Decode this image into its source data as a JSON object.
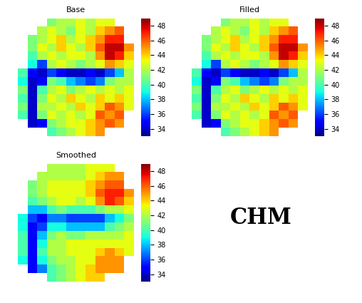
{
  "chart_data": [
    {
      "type": "heatmap",
      "title": "Base",
      "tick_labels": false,
      "cells": [
        [
          null,
          null,
          null,
          41,
          42,
          42,
          43,
          42,
          43,
          43,
          null,
          null
        ],
        [
          null,
          null,
          42,
          43,
          42,
          41,
          43,
          42,
          44,
          45,
          46,
          null
        ],
        [
          null,
          41,
          42,
          43,
          44,
          42,
          43,
          44,
          45,
          47,
          47,
          null
        ],
        [
          null,
          41,
          43,
          42,
          44,
          43,
          42,
          44,
          46,
          48,
          48,
          45
        ],
        [
          null,
          40,
          42,
          43,
          42,
          43,
          43,
          42,
          45,
          48,
          47,
          44
        ],
        [
          null,
          39,
          36,
          42,
          43,
          42,
          41,
          42,
          43,
          45,
          44,
          43
        ],
        [
          40,
          35,
          34,
          36,
          35,
          34,
          34,
          35,
          34,
          36,
          38,
          42
        ],
        [
          39,
          34,
          35,
          41,
          40,
          38,
          37,
          36,
          37,
          41,
          42,
          42
        ],
        [
          41,
          34,
          40,
          42,
          43,
          41,
          42,
          43,
          42,
          43,
          42,
          43
        ],
        [
          40,
          34,
          41,
          43,
          42,
          44,
          43,
          42,
          44,
          43,
          44,
          43
        ],
        [
          41,
          34,
          42,
          42,
          43,
          42,
          44,
          43,
          44,
          46,
          45,
          43
        ],
        [
          40,
          34,
          41,
          43,
          42,
          43,
          42,
          43,
          46,
          45,
          46,
          null
        ],
        [
          null,
          34,
          35,
          41,
          42,
          43,
          43,
          44,
          45,
          46,
          45,
          null
        ],
        [
          null,
          null,
          null,
          40,
          41,
          42,
          43,
          44,
          45,
          null,
          null,
          null
        ]
      ],
      "colorbar_range": [
        33,
        49
      ],
      "colorbar_ticks": [
        34,
        36,
        38,
        40,
        42,
        44,
        46,
        48
      ]
    },
    {
      "type": "heatmap",
      "title": "Filled",
      "tick_labels": false,
      "cells": [
        [
          null,
          null,
          null,
          41,
          42,
          42,
          43,
          42,
          43,
          43,
          null,
          null
        ],
        [
          null,
          null,
          42,
          43,
          42,
          41,
          43,
          42,
          44,
          45,
          46,
          null
        ],
        [
          null,
          41,
          42,
          43,
          44,
          42,
          43,
          44,
          45,
          47,
          47,
          null
        ],
        [
          null,
          41,
          43,
          42,
          44,
          43,
          42,
          44,
          46,
          48,
          48,
          45
        ],
        [
          null,
          40,
          42,
          43,
          42,
          43,
          43,
          42,
          45,
          48,
          47,
          44
        ],
        [
          null,
          39,
          36,
          42,
          43,
          42,
          41,
          42,
          43,
          45,
          44,
          43
        ],
        [
          40,
          35,
          34,
          36,
          35,
          34,
          34,
          35,
          34,
          36,
          38,
          42
        ],
        [
          39,
          34,
          35,
          41,
          40,
          38,
          37,
          36,
          37,
          41,
          42,
          42
        ],
        [
          41,
          34,
          40,
          42,
          43,
          41,
          42,
          43,
          42,
          43,
          42,
          43
        ],
        [
          40,
          34,
          41,
          43,
          42,
          44,
          43,
          42,
          44,
          43,
          44,
          43
        ],
        [
          41,
          34,
          42,
          42,
          43,
          42,
          44,
          43,
          44,
          46,
          45,
          43
        ],
        [
          40,
          34,
          41,
          43,
          42,
          43,
          42,
          43,
          46,
          45,
          46,
          null
        ],
        [
          null,
          34,
          35,
          41,
          42,
          43,
          43,
          44,
          45,
          46,
          45,
          null
        ],
        [
          null,
          null,
          null,
          40,
          41,
          42,
          43,
          44,
          45,
          null,
          null,
          null
        ]
      ],
      "colorbar_range": [
        33,
        49
      ],
      "colorbar_ticks": [
        34,
        36,
        38,
        40,
        42,
        44,
        46,
        48
      ]
    },
    {
      "type": "heatmap",
      "title": "Smoothed",
      "tick_labels": false,
      "cells": [
        [
          null,
          null,
          null,
          42,
          42,
          42,
          42,
          43,
          43,
          43,
          null,
          null
        ],
        [
          null,
          null,
          42,
          42,
          42,
          42,
          42,
          43,
          44,
          45,
          45,
          null
        ],
        [
          null,
          41,
          42,
          43,
          43,
          43,
          43,
          44,
          45,
          46,
          46,
          null
        ],
        [
          null,
          41,
          42,
          43,
          43,
          43,
          43,
          44,
          46,
          47,
          47,
          45
        ],
        [
          null,
          40,
          41,
          42,
          43,
          43,
          42,
          43,
          45,
          47,
          46,
          44
        ],
        [
          null,
          38,
          38,
          40,
          41,
          40,
          40,
          40,
          41,
          42,
          42,
          43
        ],
        [
          39,
          36,
          35,
          37,
          37,
          36,
          36,
          36,
          36,
          38,
          39,
          41
        ],
        [
          39,
          35,
          36,
          39,
          39,
          38,
          38,
          38,
          38,
          40,
          41,
          42
        ],
        [
          40,
          35,
          38,
          41,
          42,
          41,
          41,
          42,
          42,
          42,
          42,
          43
        ],
        [
          40,
          35,
          39,
          42,
          42,
          43,
          43,
          43,
          43,
          43,
          43,
          43
        ],
        [
          40,
          35,
          40,
          42,
          42,
          43,
          43,
          43,
          44,
          45,
          44,
          43
        ],
        [
          39,
          35,
          39,
          41,
          42,
          42,
          43,
          43,
          45,
          45,
          45,
          null
        ],
        [
          null,
          35,
          37,
          40,
          41,
          42,
          43,
          44,
          45,
          45,
          45,
          null
        ],
        [
          null,
          null,
          null,
          40,
          41,
          42,
          43,
          44,
          44,
          null,
          null,
          null
        ]
      ],
      "colorbar_range": [
        33,
        49
      ],
      "colorbar_ticks": [
        34,
        36,
        38,
        40,
        42,
        44,
        46,
        48
      ]
    }
  ],
  "annotation": "CHM"
}
